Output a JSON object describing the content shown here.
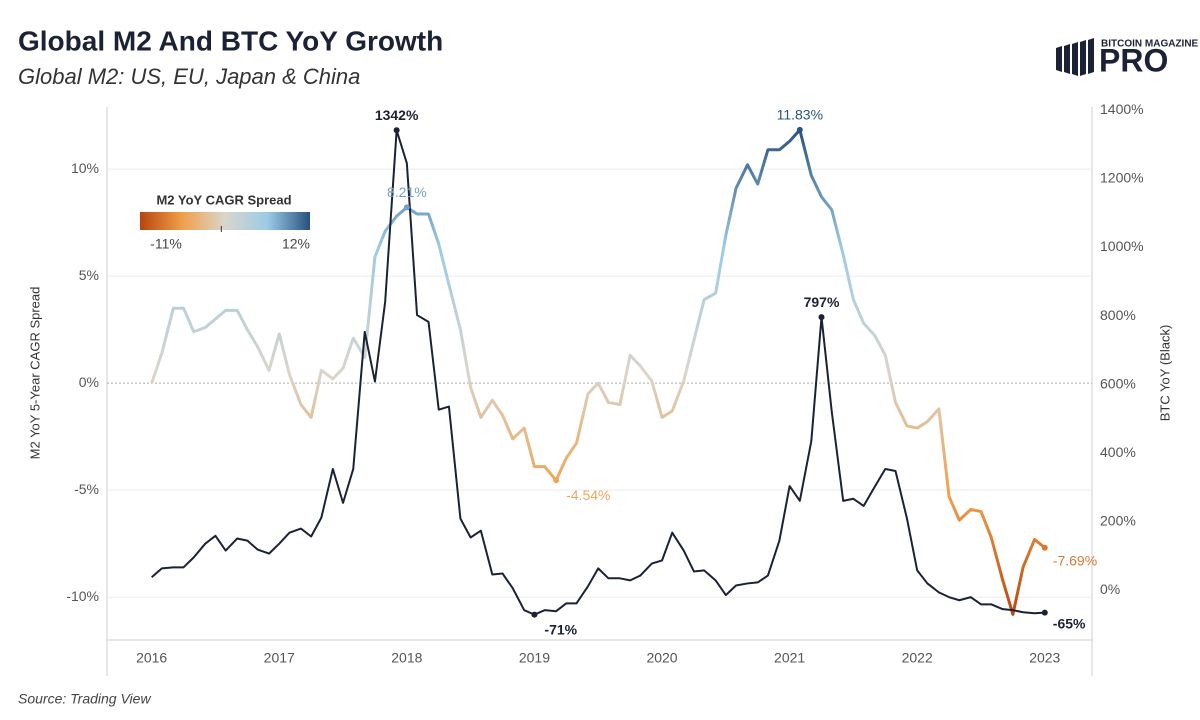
{
  "chart_data": {
    "type": "line",
    "title": "Global M2 And BTC YoY Growth",
    "subtitle": "Global M2: US, EU, Japan & China",
    "source": "Source: Trading View",
    "brand": {
      "top": "BITCOIN MAGAZINE",
      "main": "PRO"
    },
    "ylabel": "M2 YoY 5-Year CAGR Spread",
    "y2label": "BTC YoY (Black)",
    "x": [
      2016,
      2016.08,
      2016.17,
      2016.25,
      2016.33,
      2016.42,
      2016.5,
      2016.58,
      2016.67,
      2016.75,
      2016.83,
      2016.92,
      2017,
      2017.08,
      2017.17,
      2017.25,
      2017.33,
      2017.42,
      2017.5,
      2017.58,
      2017.67,
      2017.75,
      2017.83,
      2017.92,
      2018,
      2018.08,
      2018.17,
      2018.25,
      2018.33,
      2018.42,
      2018.5,
      2018.58,
      2018.67,
      2018.75,
      2018.83,
      2018.92,
      2019,
      2019.08,
      2019.17,
      2019.25,
      2019.33,
      2019.42,
      2019.5,
      2019.58,
      2019.67,
      2019.75,
      2019.83,
      2019.92,
      2020,
      2020.08,
      2020.17,
      2020.25,
      2020.33,
      2020.42,
      2020.5,
      2020.58,
      2020.67,
      2020.75,
      2020.83,
      2020.92,
      2021,
      2021.08,
      2021.17,
      2021.25,
      2021.33,
      2021.42,
      2021.5,
      2021.58,
      2021.67,
      2021.75,
      2021.83,
      2021.92,
      2022,
      2022.08,
      2022.17,
      2022.25,
      2022.33,
      2022.42,
      2022.5,
      2022.58,
      2022.67,
      2022.75,
      2022.83,
      2022.92,
      2023
    ],
    "xlim": [
      2015.65,
      2023.37
    ],
    "xticks": [
      2016,
      2017,
      2018,
      2019,
      2020,
      2021,
      2022,
      2023
    ],
    "ylim": [
      -12,
      12.9
    ],
    "yticks": [
      {
        "value": -10,
        "label": "-10%"
      },
      {
        "value": -5,
        "label": "-5%"
      },
      {
        "value": 0,
        "label": "0%"
      },
      {
        "value": 5,
        "label": "5%"
      },
      {
        "value": 10,
        "label": "10%"
      }
    ],
    "y2lim": [
      -145,
      1410
    ],
    "y2ticks": [
      {
        "value": 0,
        "label": "0%"
      },
      {
        "value": 200,
        "label": "200%"
      },
      {
        "value": 400,
        "label": "400%"
      },
      {
        "value": 600,
        "label": "600%"
      },
      {
        "value": 800,
        "label": "800%"
      },
      {
        "value": 1000,
        "label": "1000%"
      },
      {
        "value": 1200,
        "label": "1200%"
      },
      {
        "value": 1400,
        "label": "1400%"
      }
    ],
    "grid": true,
    "zero_line": true,
    "color_scale": {
      "title": "M2 YoY CAGR Spread",
      "min": {
        "value": -11,
        "label": "-11%"
      },
      "max": {
        "value": 12,
        "label": "12%"
      },
      "colors": [
        "#b8450f",
        "#f0a04a",
        "#d9d5cc",
        "#9ccbe6",
        "#27507f"
      ]
    },
    "series": [
      {
        "axis": "y",
        "color_by_value": true,
        "values": [
          0.0,
          1.4,
          3.5,
          3.5,
          2.4,
          2.6,
          3.0,
          3.4,
          3.4,
          2.5,
          1.7,
          0.6,
          2.3,
          0.4,
          -1.0,
          -1.6,
          0.6,
          0.2,
          0.7,
          2.1,
          1.2,
          5.9,
          7.1,
          7.8,
          8.21,
          7.9,
          7.9,
          6.5,
          4.6,
          2.5,
          -0.2,
          -1.6,
          -0.8,
          -1.5,
          -2.6,
          -2.1,
          -3.9,
          -3.9,
          -4.54,
          -3.5,
          -2.8,
          -0.5,
          0.0,
          -0.9,
          -1.0,
          1.3,
          0.8,
          0.1,
          -1.6,
          -1.3,
          0.1,
          2.0,
          3.9,
          4.2,
          6.9,
          9.1,
          10.2,
          9.3,
          10.9,
          10.9,
          11.3,
          11.83,
          9.7,
          8.7,
          8.1,
          6.0,
          3.9,
          2.8,
          2.2,
          1.3,
          -0.9,
          -2.0,
          -2.1,
          -1.8,
          -1.2,
          -5.3,
          -6.4,
          -5.9,
          -6.0,
          -7.2,
          -9.2,
          -10.8,
          -8.6,
          -7.3,
          -7.69
        ],
        "value_labels": [
          null,
          null,
          null,
          null,
          null,
          null,
          null,
          null,
          null,
          null,
          null,
          null,
          null,
          null,
          null,
          null,
          null,
          null,
          null,
          null,
          null,
          null,
          null,
          null,
          "8.21%",
          null,
          null,
          null,
          null,
          null,
          null,
          null,
          null,
          null,
          null,
          null,
          null,
          null,
          "-4.54%",
          null,
          null,
          null,
          null,
          null,
          null,
          null,
          null,
          null,
          null,
          null,
          null,
          null,
          null,
          null,
          null,
          null,
          null,
          null,
          null,
          null,
          null,
          "11.83%",
          null,
          null,
          null,
          null,
          null,
          null,
          null,
          null,
          null,
          null,
          null,
          null,
          null,
          null,
          null,
          null,
          null,
          null,
          null,
          null,
          null,
          null,
          "-7.69%"
        ]
      },
      {
        "axis": "y2",
        "color": "#1b2235",
        "values": [
          38,
          64,
          67,
          67,
          96,
          136,
          159,
          116,
          151,
          145,
          119,
          107,
          136,
          168,
          180,
          157,
          212,
          354,
          255,
          354,
          754,
          609,
          841,
          1342,
          1246,
          803,
          783,
          527,
          536,
          209,
          154,
          174,
          46,
          49,
          6,
          -58,
          -71,
          -58,
          -61,
          -38,
          -38,
          12,
          64,
          35,
          35,
          29,
          43,
          78,
          87,
          168,
          116,
          55,
          58,
          29,
          -14,
          14,
          20,
          23,
          43,
          145,
          304,
          261,
          435,
          797,
          522,
          261,
          267,
          246,
          304,
          354,
          348,
          209,
          58,
          20,
          -6,
          -20,
          -29,
          -20,
          -41,
          -41,
          -55,
          -58,
          -64,
          -67,
          -65
        ],
        "value_labels": [
          null,
          null,
          null,
          null,
          null,
          null,
          null,
          null,
          null,
          null,
          null,
          null,
          null,
          null,
          null,
          null,
          null,
          null,
          null,
          null,
          null,
          null,
          null,
          "1342%",
          null,
          null,
          null,
          null,
          null,
          null,
          null,
          null,
          null,
          null,
          null,
          null,
          "-71%",
          null,
          null,
          null,
          null,
          null,
          null,
          null,
          null,
          null,
          null,
          null,
          null,
          null,
          null,
          null,
          null,
          null,
          null,
          null,
          null,
          null,
          null,
          null,
          null,
          null,
          null,
          "797%",
          null,
          null,
          null,
          null,
          null,
          null,
          null,
          null,
          null,
          null,
          null,
          null,
          null,
          null,
          null,
          null,
          null,
          null,
          null,
          null,
          "-65%"
        ]
      }
    ]
  }
}
